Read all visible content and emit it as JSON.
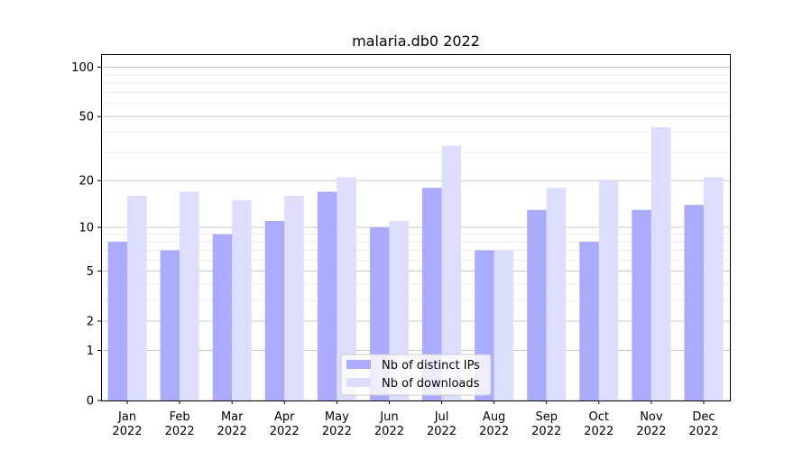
{
  "chart_data": {
    "type": "bar",
    "title": "malaria.db0 2022",
    "xlabel": "",
    "ylabel": "",
    "scale": "log(1+y)",
    "ylim": [
      0,
      120
    ],
    "y_ticks": [
      0,
      1,
      2,
      5,
      10,
      20,
      50,
      100
    ],
    "grid": "horizontal",
    "legend_position": "bottom-center",
    "categories": [
      [
        "Jan",
        "2022"
      ],
      [
        "Feb",
        "2022"
      ],
      [
        "Mar",
        "2022"
      ],
      [
        "Apr",
        "2022"
      ],
      [
        "May",
        "2022"
      ],
      [
        "Jun",
        "2022"
      ],
      [
        "Jul",
        "2022"
      ],
      [
        "Aug",
        "2022"
      ],
      [
        "Sep",
        "2022"
      ],
      [
        "Oct",
        "2022"
      ],
      [
        "Nov",
        "2022"
      ],
      [
        "Dec",
        "2022"
      ]
    ],
    "series": [
      {
        "name": "Nb of distinct IPs",
        "color": "#aaaaff",
        "values": [
          8,
          7,
          9,
          11,
          17,
          10,
          18,
          7,
          13,
          8,
          13,
          14
        ]
      },
      {
        "name": "Nb of downloads",
        "color": "#ddddff",
        "values": [
          16,
          17,
          15,
          16,
          21,
          11,
          33,
          7,
          18,
          20,
          43,
          21
        ]
      }
    ]
  }
}
